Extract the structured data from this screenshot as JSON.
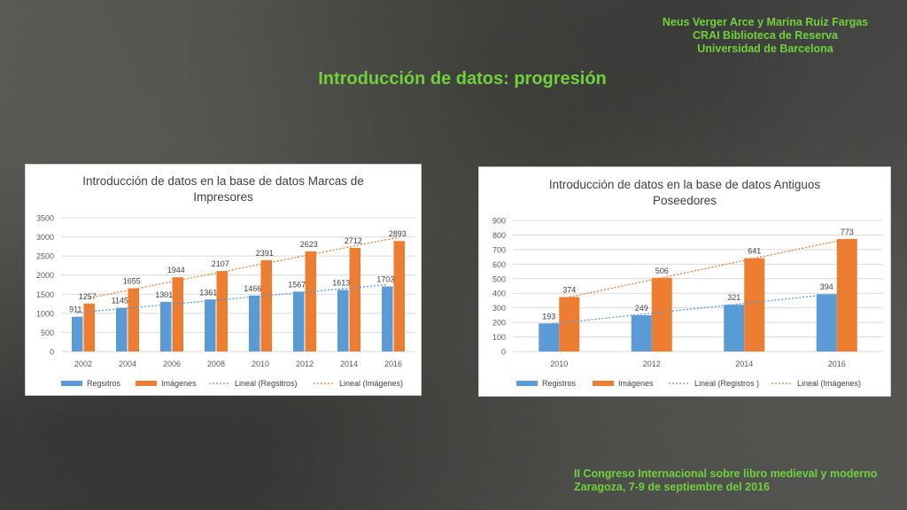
{
  "credits": {
    "line1": "Neus Verger Arce y Marina Ruiz Fargas",
    "line2": "CRAI Biblioteca de Reserva",
    "line3": "Universidad de Barcelona"
  },
  "slide_title": "Introducción de datos: progresión",
  "footer": {
    "line1": "II Congreso Internacional sobre libro medieval y moderno",
    "line2": "Zaragoza, 7-9 de septiembre del 2016"
  },
  "colors": {
    "accent_green": "#6fd23a",
    "blue": "#5b9bd5",
    "orange": "#ed7d31"
  },
  "chart_data": [
    {
      "type": "bar",
      "title_line1": "Introducción de datos en la base de datos Marcas de",
      "title_line2": "Impresores",
      "categories": [
        "2002",
        "2004",
        "2006",
        "2008",
        "2010",
        "2012",
        "2014",
        "2016"
      ],
      "ylim": [
        0,
        3500
      ],
      "yticks": [
        "0",
        "500",
        "1000",
        "1500",
        "2000",
        "2500",
        "3000",
        "3500"
      ],
      "series": [
        {
          "name": "Regsitros",
          "color": "#5b9bd5",
          "values": [
            911,
            1145,
            1301,
            1361,
            1466,
            1567,
            1613,
            1703
          ]
        },
        {
          "name": "Imágenes",
          "color": "#ed7d31",
          "values": [
            1257,
            1655,
            1944,
            2107,
            2391,
            2623,
            2712,
            2893
          ]
        }
      ],
      "trendlines": [
        {
          "name": "Lineal (Regsitros)",
          "color": "#5b9bd5",
          "series": 0
        },
        {
          "name": "Lineal (Imágenes)",
          "color": "#ed7d31",
          "series": 1
        }
      ],
      "grid": true,
      "legend": "bottom"
    },
    {
      "type": "bar",
      "title_line1": "Introducción de datos en la base de datos Antiguos",
      "title_line2": "Poseedores",
      "categories": [
        "2010",
        "2012",
        "2014",
        "2016"
      ],
      "ylim": [
        0,
        900
      ],
      "yticks": [
        "0",
        "100",
        "200",
        "300",
        "400",
        "500",
        "600",
        "700",
        "800",
        "900"
      ],
      "series": [
        {
          "name": "Registros",
          "color": "#5b9bd5",
          "values": [
            193,
            249,
            321,
            394
          ]
        },
        {
          "name": "Imágenes",
          "color": "#ed7d31",
          "values": [
            374,
            506,
            641,
            773
          ]
        }
      ],
      "trendlines": [
        {
          "name": "Lineal (Registros )",
          "color": "#5b9bd5",
          "series": 0
        },
        {
          "name": "Lineal (Imágenes)",
          "color": "#ed7d31",
          "series": 1
        }
      ],
      "grid": true,
      "legend": "bottom"
    }
  ]
}
